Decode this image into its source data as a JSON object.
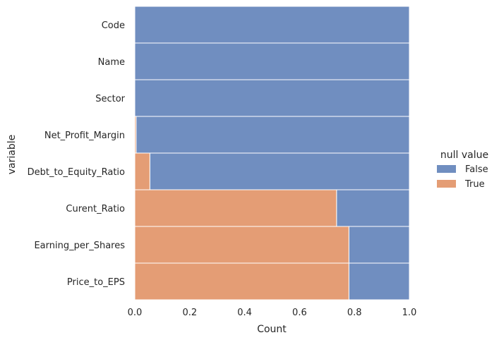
{
  "chart_data": {
    "type": "bar",
    "orientation": "horizontal",
    "stacked": "fill",
    "categories": [
      "Code",
      "Name",
      "Sector",
      "Net_Profit_Margin",
      "Debt_to_Equity_Ratio",
      "Curent_Ratio",
      "Earning_per_Shares",
      "Price_to_EPS"
    ],
    "series": [
      {
        "name": "True",
        "color": "#dd8452",
        "values": [
          0.0,
          0.0,
          0.0,
          0.005,
          0.055,
          0.735,
          0.78,
          0.78
        ]
      },
      {
        "name": "False",
        "color": "#4c72b0",
        "values": [
          1.0,
          1.0,
          1.0,
          0.995,
          0.945,
          0.265,
          0.22,
          0.22
        ]
      }
    ],
    "xlabel": "Count",
    "ylabel": "variable",
    "xlim": [
      0,
      1
    ],
    "xticks": [
      "0.0",
      "0.2",
      "0.4",
      "0.6",
      "0.8",
      "1.0"
    ],
    "legend": {
      "title": "null value",
      "placement": "right",
      "entries": [
        {
          "label": "False",
          "color": "#4c72b0"
        },
        {
          "label": "True",
          "color": "#dd8452"
        }
      ]
    },
    "grid": false
  }
}
